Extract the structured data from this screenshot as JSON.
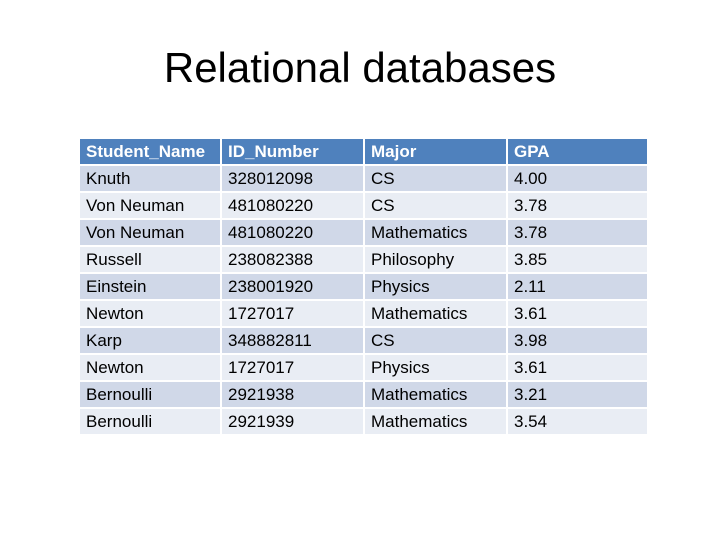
{
  "title": "Relational databases",
  "table": {
    "headers": [
      "Student_Name",
      "ID_Number",
      "Major",
      "GPA"
    ],
    "rows": [
      [
        "Knuth",
        "328012098",
        "CS",
        "4.00"
      ],
      [
        "Von Neuman",
        "481080220",
        "CS",
        "3.78"
      ],
      [
        "Von Neuman",
        "481080220",
        "Mathematics",
        "3.78"
      ],
      [
        "Russell",
        "238082388",
        "Philosophy",
        "3.85"
      ],
      [
        "Einstein",
        "238001920",
        "Physics",
        "2.11"
      ],
      [
        "Newton",
        "1727017",
        "Mathematics",
        "3.61"
      ],
      [
        "Karp",
        "348882811",
        "CS",
        "3.98"
      ],
      [
        "Newton",
        "1727017",
        "Physics",
        "3.61"
      ],
      [
        "Bernoulli",
        "2921938",
        "Mathematics",
        "3.21"
      ],
      [
        "Bernoulli",
        "2921939",
        "Mathematics",
        "3.54"
      ]
    ]
  },
  "colors": {
    "header_bg": "#4f81bd",
    "row_dark": "#d0d8e8",
    "row_light": "#e9edf4"
  }
}
